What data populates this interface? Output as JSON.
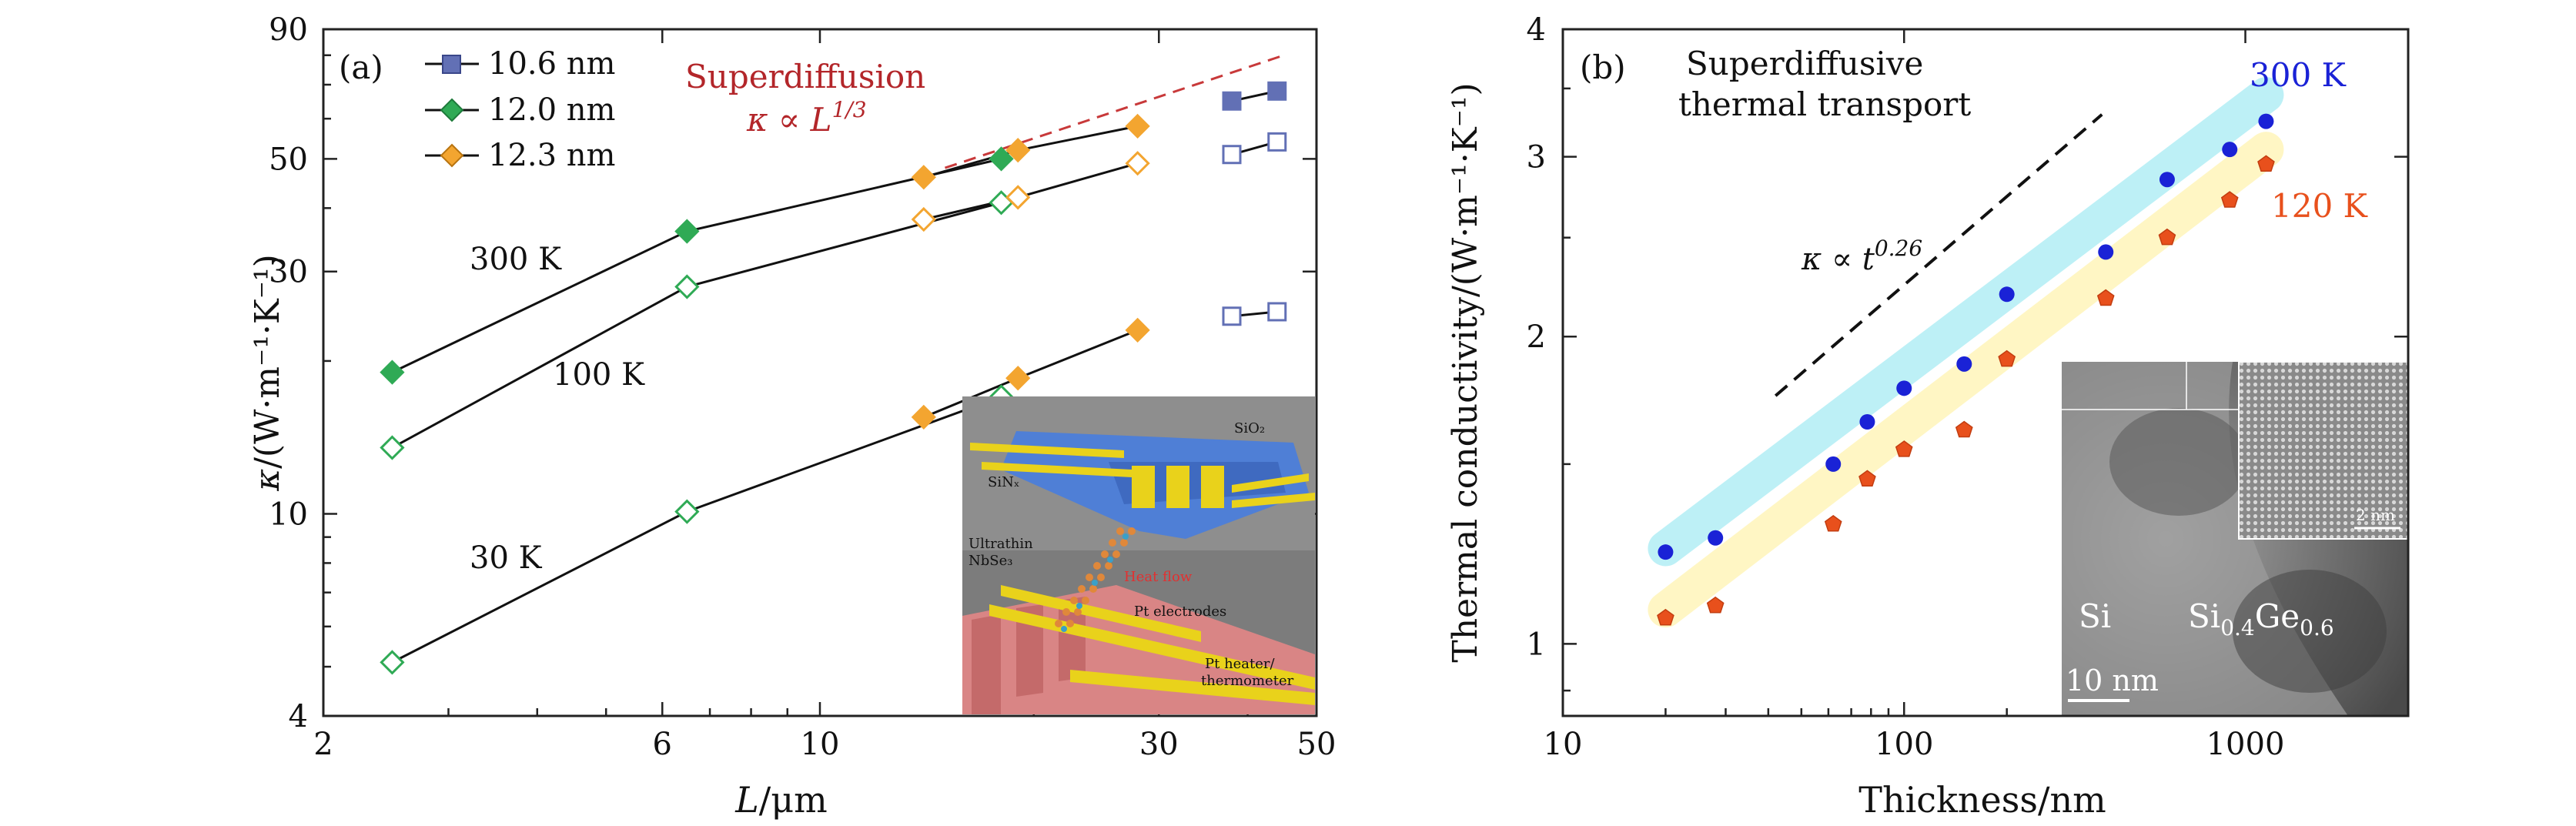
{
  "chart_data": [
    {
      "panel": "(a)",
      "type": "line",
      "xscale": "log",
      "yscale": "log",
      "xlim": [
        2,
        50
      ],
      "ylim": [
        4,
        90
      ],
      "xlabel_var": "L",
      "xlabel_unit": "/μm",
      "ylabel_var": "κ",
      "ylabel_unit": "/(W·m⁻¹·K⁻¹)",
      "xticks": [
        2,
        6,
        10,
        30,
        50
      ],
      "yticks": [
        4,
        10,
        30,
        50,
        90
      ],
      "legend": [
        {
          "label": "10.6 nm",
          "color": "#6270b5",
          "marker": "square"
        },
        {
          "label": "12.0 nm",
          "color": "#2faa55",
          "marker": "diamond"
        },
        {
          "label": "12.3 nm",
          "color": "#f3a530",
          "marker": "diamond"
        }
      ],
      "annotation_title": "Superdiffusion",
      "annotation_formula": "κ ∝ L",
      "annotation_exp": "1/3",
      "guide_line": [
        [
          15,
          48
        ],
        [
          45,
          80
        ]
      ],
      "temperature_labels": [
        "300 K",
        "100 K",
        "30 K"
      ],
      "series": [
        {
          "name": "12.0 nm 300 K",
          "sample": "12.0 nm",
          "temperature": "300 K",
          "filled": true,
          "x": [
            2.5,
            6.5,
            18
          ],
          "y": [
            19,
            36,
            50
          ]
        },
        {
          "name": "12.3 nm 300 K",
          "sample": "12.3 nm",
          "temperature": "300 K",
          "filled": true,
          "x": [
            14,
            19,
            28
          ],
          "y": [
            46,
            52,
            58
          ]
        },
        {
          "name": "10.6 nm 300 K",
          "sample": "10.6 nm",
          "temperature": "300 K",
          "filled": true,
          "x": [
            38,
            44
          ],
          "y": [
            65,
            68
          ]
        },
        {
          "name": "12.0 nm 100 K",
          "sample": "12.0 nm",
          "temperature": "100 K",
          "filled": false,
          "x": [
            2.5,
            6.5,
            18
          ],
          "y": [
            13.5,
            28,
            41
          ]
        },
        {
          "name": "12.3 nm 100 K",
          "sample": "12.3 nm",
          "temperature": "100 K",
          "filled": false,
          "x": [
            14,
            19,
            28
          ],
          "y": [
            38,
            42,
            49
          ]
        },
        {
          "name": "10.6 nm 100 K",
          "sample": "10.6 nm",
          "temperature": "100 K",
          "filled": false,
          "x": [
            38,
            44
          ],
          "y": [
            51,
            54
          ]
        },
        {
          "name": "12.0 nm 30 K",
          "sample": "12.0 nm",
          "temperature": "30 K",
          "filled": false,
          "x": [
            2.5,
            6.5,
            18
          ],
          "y": [
            5.1,
            10.1,
            17
          ]
        },
        {
          "name": "12.3 nm 30 K",
          "sample": "12.3 nm",
          "temperature": "30 K",
          "filled": true,
          "x": [
            14,
            19,
            28
          ],
          "y": [
            15.5,
            18.5,
            23
          ]
        },
        {
          "name": "10.6 nm 30 K",
          "sample": "10.6 nm",
          "temperature": "30 K",
          "filled": false,
          "x": [
            38,
            44
          ],
          "y": [
            24.5,
            25
          ]
        }
      ],
      "inset_labels": [
        "SiO₂",
        "SiNₓ",
        "Ultrathin",
        "NbSe₃",
        "Heat flow",
        "Pt electrodes",
        "Pt heater/",
        "thermometer"
      ]
    },
    {
      "panel": "(b)",
      "type": "scatter",
      "xscale": "log",
      "yscale": "log",
      "xlim": [
        10,
        3000
      ],
      "ylim": [
        0.85,
        4
      ],
      "xlabel": "Thickness/nm",
      "ylabel": "Thermal conductivity/(W·m⁻¹·K⁻¹)",
      "xticks": [
        10,
        100,
        1000
      ],
      "yticks": [
        1,
        2,
        3,
        4
      ],
      "annotation_line1": "Superdiffusive",
      "annotation_line2": "thermal transport",
      "slope_label": "κ ∝ t",
      "slope_exp": "0.26",
      "slope_line": [
        [
          42,
          1.75
        ],
        [
          380,
          3.3
        ]
      ],
      "band_300K": [
        [
          20,
          1.24
        ],
        [
          1150,
          3.45
        ]
      ],
      "band_120K": [
        [
          20,
          1.08
        ],
        [
          1150,
          3.05
        ]
      ],
      "series": [
        {
          "name": "300 K",
          "color": "#1a22d6",
          "x": [
            20,
            28,
            62,
            78,
            100,
            150,
            200,
            390,
            590,
            900,
            1150
          ],
          "y": [
            1.23,
            1.27,
            1.5,
            1.65,
            1.78,
            1.88,
            2.2,
            2.42,
            2.85,
            3.05,
            3.25
          ]
        },
        {
          "name": "120 K",
          "color": "#e8501c",
          "x": [
            20,
            28,
            62,
            78,
            100,
            150,
            200,
            390,
            590,
            900,
            1150
          ],
          "y": [
            1.06,
            1.09,
            1.31,
            1.45,
            1.55,
            1.62,
            1.9,
            2.18,
            2.5,
            2.72,
            2.95
          ]
        }
      ],
      "inset_labels": {
        "si": "Si",
        "sige_base": "Si",
        "sige_sub1": "0.4",
        "sige_mid": "Ge",
        "sige_sub2": "0.6",
        "scale": "10 nm",
        "zoom_scale": "2 nm"
      }
    }
  ]
}
